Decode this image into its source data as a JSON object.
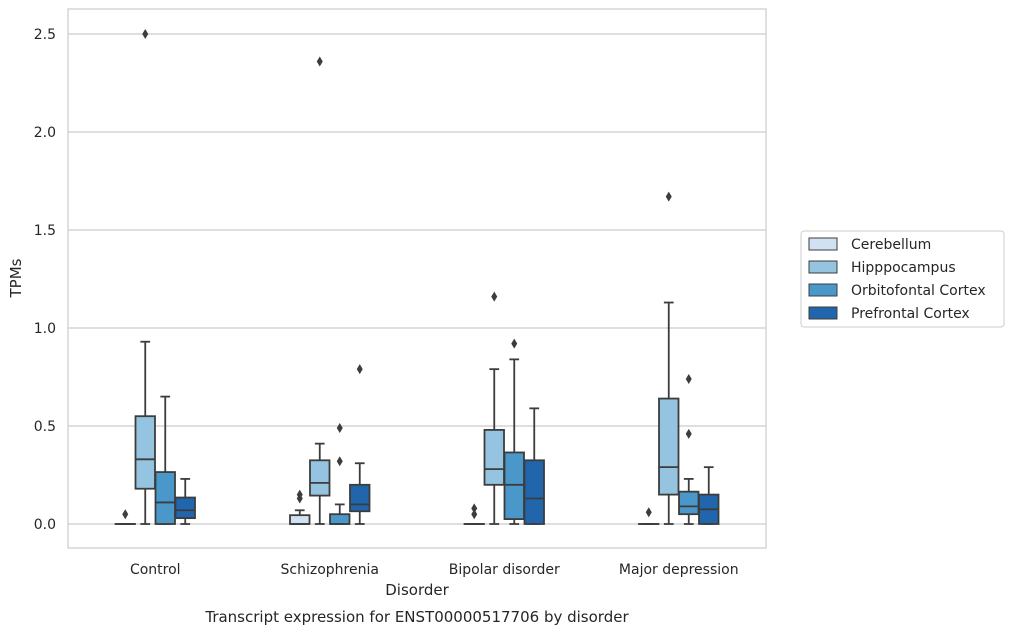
{
  "chart_data": {
    "type": "box",
    "caption": "Transcript expression for ENST00000517706 by disorder",
    "xlabel": "Disorder",
    "ylabel": "TPMs",
    "ylim": [
      -0.12,
      2.63
    ],
    "yticks": [
      0.0,
      0.5,
      1.0,
      1.5,
      2.0,
      2.5
    ],
    "ytick_labels": [
      "0.0",
      "0.5",
      "1.0",
      "1.5",
      "2.0",
      "2.5"
    ],
    "grid": "horizontal",
    "legend_position": "right",
    "categories": [
      "Control",
      "Schizophrenia",
      "Bipolar disorder",
      "Major depression"
    ],
    "series": [
      {
        "name": "Cerebellum",
        "color": "#d0e1f2",
        "boxes": [
          {
            "whislo": 0.0,
            "q1": 0.0,
            "med": 0.0,
            "q3": 0.0,
            "whishi": 0.0,
            "fliers": [
              0.05
            ]
          },
          {
            "whislo": 0.0,
            "q1": 0.0,
            "med": 0.0,
            "q3": 0.045,
            "whishi": 0.07,
            "fliers": [
              0.13,
              0.15
            ]
          },
          {
            "whislo": 0.0,
            "q1": 0.0,
            "med": 0.0,
            "q3": 0.0,
            "whishi": 0.0,
            "fliers": [
              0.05,
              0.08
            ]
          },
          {
            "whislo": 0.0,
            "q1": 0.0,
            "med": 0.0,
            "q3": 0.0,
            "whishi": 0.0,
            "fliers": [
              0.06
            ]
          }
        ]
      },
      {
        "name": "Hipppocampus",
        "color": "#94c4df",
        "boxes": [
          {
            "whislo": 0.0,
            "q1": 0.18,
            "med": 0.33,
            "q3": 0.55,
            "whishi": 0.93,
            "fliers": [
              2.5
            ]
          },
          {
            "whislo": 0.0,
            "q1": 0.145,
            "med": 0.21,
            "q3": 0.325,
            "whishi": 0.41,
            "fliers": [
              2.36
            ]
          },
          {
            "whislo": 0.0,
            "q1": 0.2,
            "med": 0.28,
            "q3": 0.48,
            "whishi": 0.79,
            "fliers": [
              1.16
            ]
          },
          {
            "whislo": 0.0,
            "q1": 0.15,
            "med": 0.29,
            "q3": 0.64,
            "whishi": 1.13,
            "fliers": [
              1.67
            ]
          }
        ]
      },
      {
        "name": "Orbitofontal Cortex",
        "color": "#4a98c9",
        "boxes": [
          {
            "whislo": 0.0,
            "q1": 0.0,
            "med": 0.11,
            "q3": 0.265,
            "whishi": 0.65,
            "fliers": []
          },
          {
            "whislo": 0.0,
            "q1": 0.0,
            "med": 0.0,
            "q3": 0.05,
            "whishi": 0.1,
            "fliers": [
              0.32,
              0.49
            ]
          },
          {
            "whislo": 0.0,
            "q1": 0.025,
            "med": 0.2,
            "q3": 0.365,
            "whishi": 0.84,
            "fliers": [
              0.92
            ]
          },
          {
            "whislo": 0.0,
            "q1": 0.05,
            "med": 0.09,
            "q3": 0.165,
            "whishi": 0.23,
            "fliers": [
              0.46,
              0.74
            ]
          }
        ]
      },
      {
        "name": "Prefrontal Cortex",
        "color": "#2166ac",
        "boxes": [
          {
            "whislo": 0.0,
            "q1": 0.03,
            "med": 0.07,
            "q3": 0.135,
            "whishi": 0.23,
            "fliers": []
          },
          {
            "whislo": 0.0,
            "q1": 0.065,
            "med": 0.1,
            "q3": 0.2,
            "whishi": 0.31,
            "fliers": [
              0.79
            ]
          },
          {
            "whislo": 0.0,
            "q1": 0.0,
            "med": 0.13,
            "q3": 0.325,
            "whishi": 0.59,
            "fliers": []
          },
          {
            "whislo": 0.0,
            "q1": 0.0,
            "med": 0.075,
            "q3": 0.15,
            "whishi": 0.29,
            "fliers": []
          }
        ]
      }
    ]
  }
}
